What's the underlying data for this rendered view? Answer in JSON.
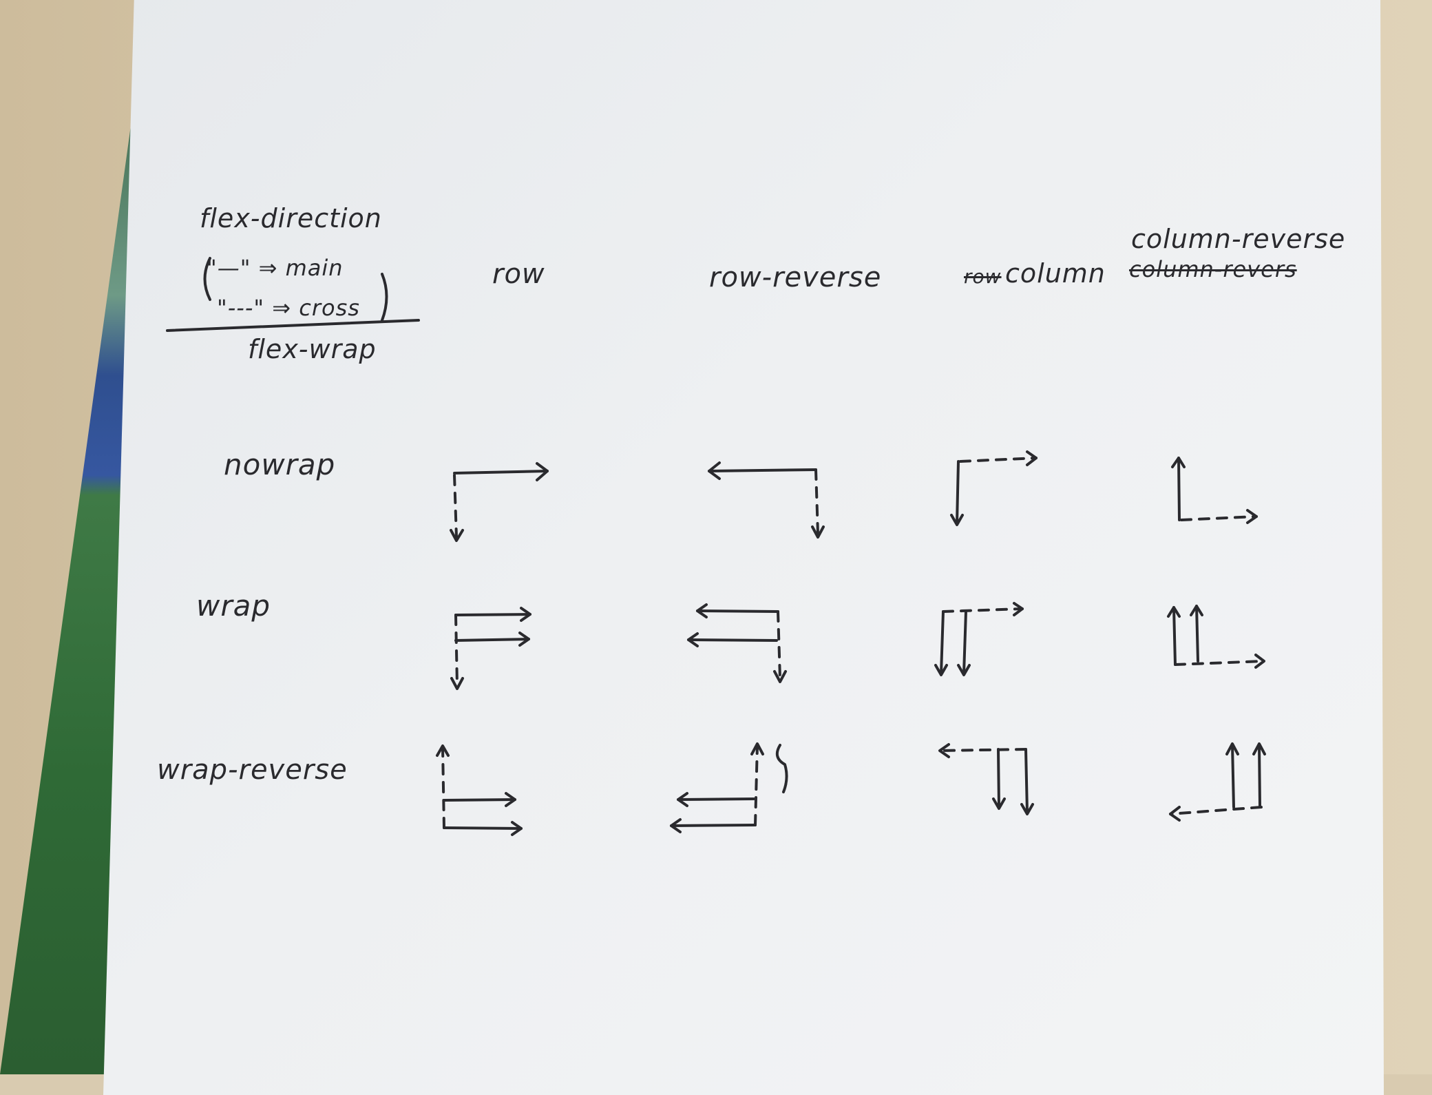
{
  "legend": {
    "title": "flex-direction",
    "solid_line_label": "\"—\" ⇒ main",
    "dashed_line_label": "\"---\" ⇒ cross",
    "subtitle": "flex-wrap"
  },
  "columns": [
    "row",
    "row-reverse",
    "column",
    "column-reverse"
  ],
  "column_strikeouts": {
    "column_prefix": "row",
    "column_reverse_misspelling": "column-revers"
  },
  "rows": [
    "nowrap",
    "wrap",
    "wrap-reverse"
  ],
  "colors": {
    "ink": "#2a2a2e",
    "paper": "#eef0f2",
    "desk": "#d8c9ab"
  }
}
